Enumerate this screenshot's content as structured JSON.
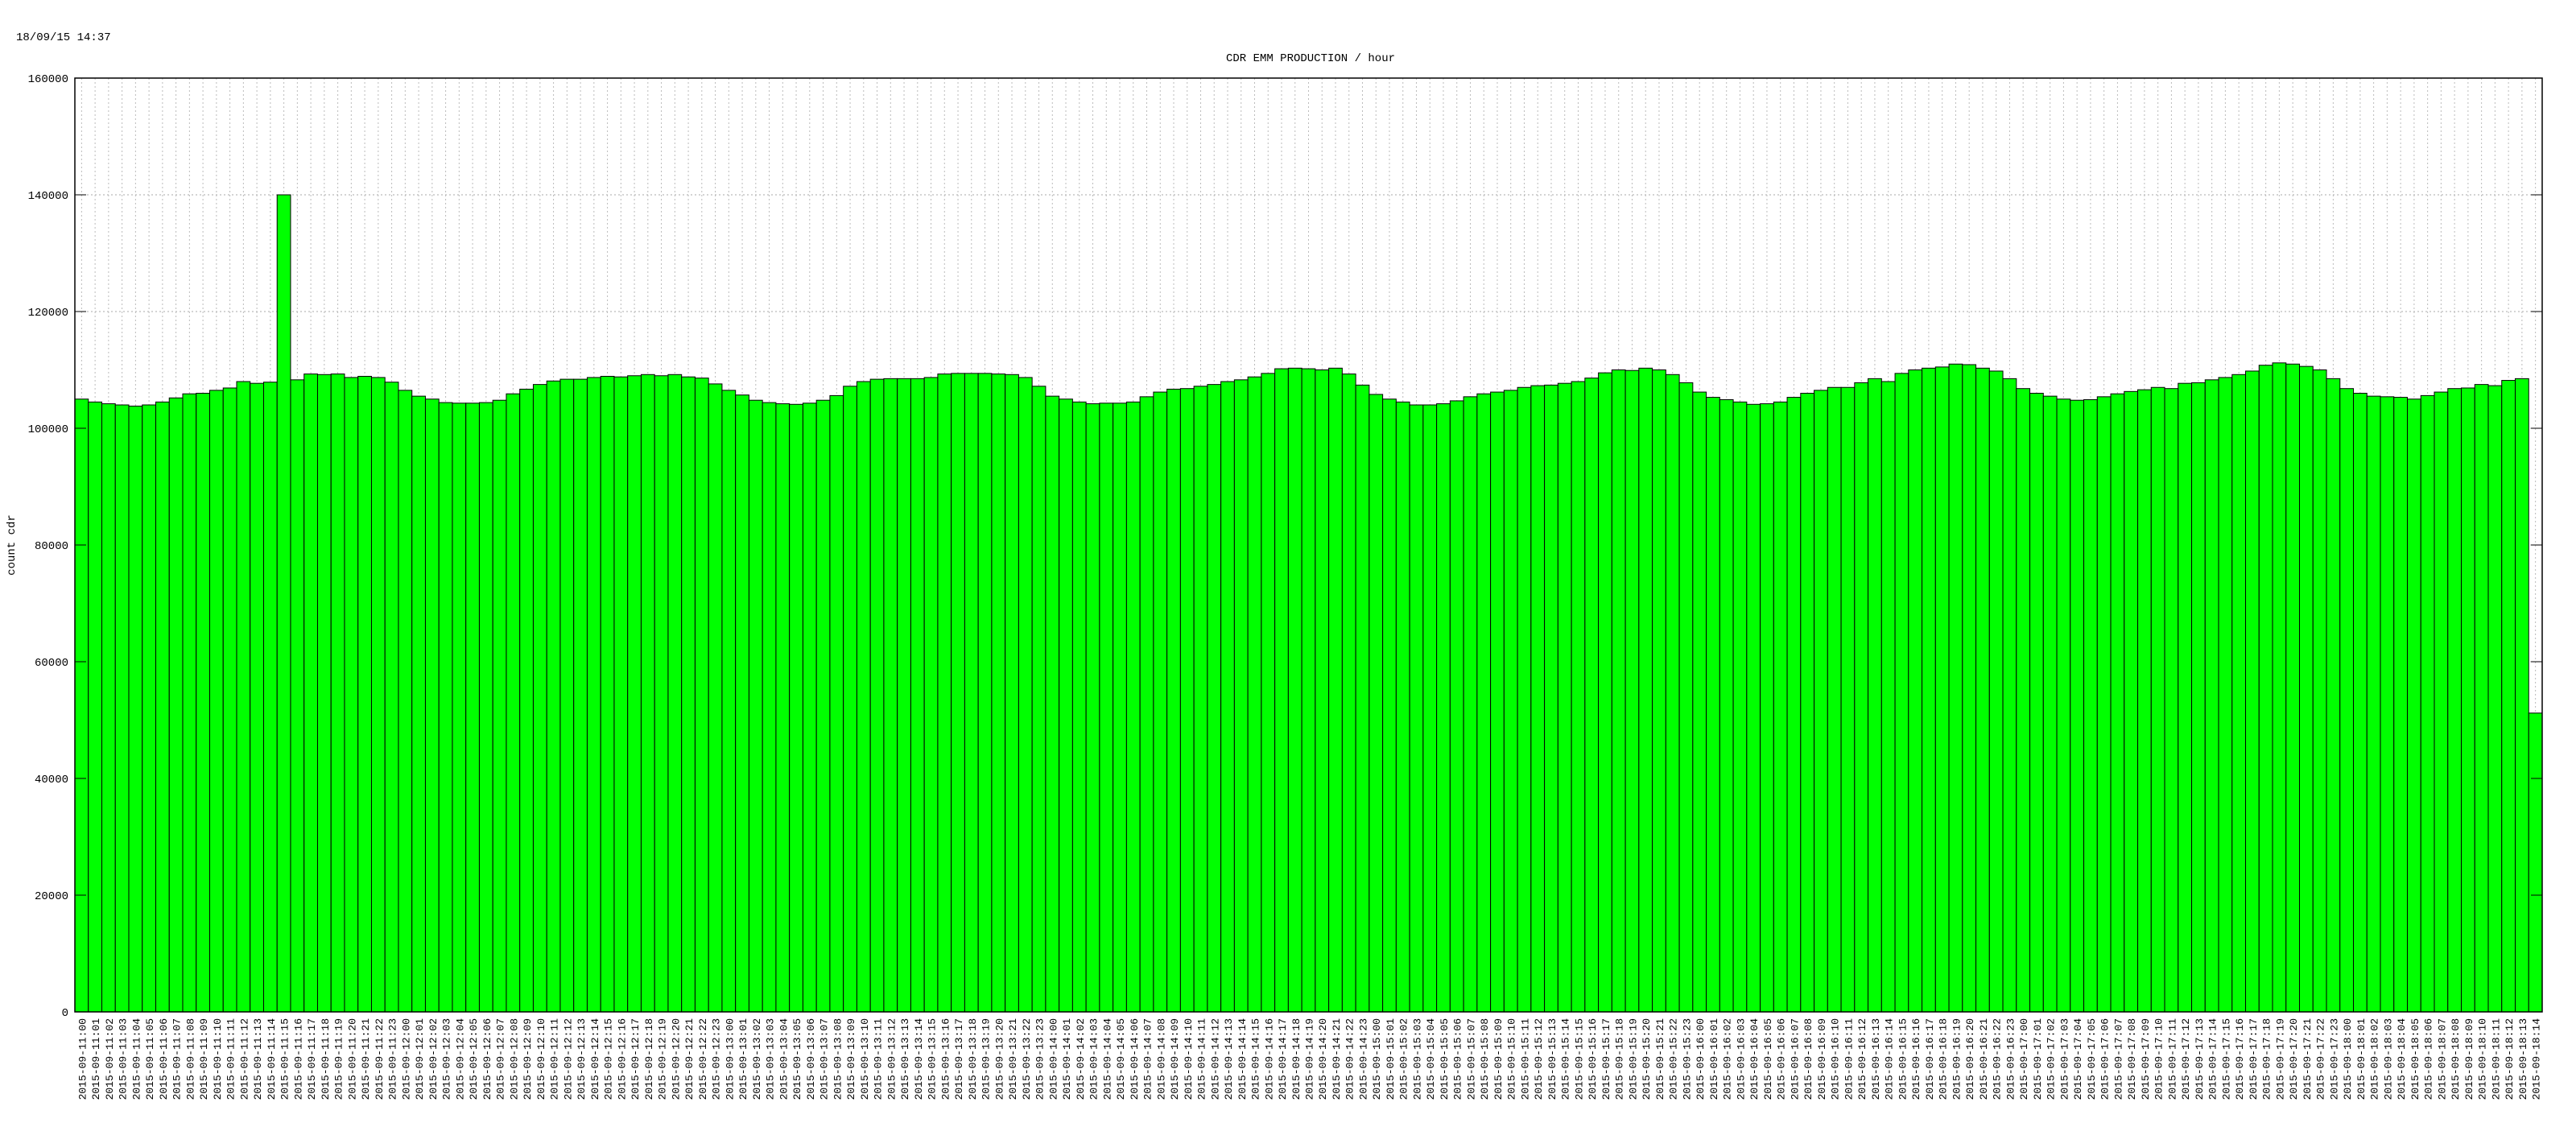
{
  "timestamp": "18/09/15 14:37",
  "chart_data": {
    "type": "bar",
    "title": "CDR EMM PRODUCTION / hour",
    "y_label": "count cdr",
    "color": "#00ff00",
    "edge_color": "#000000",
    "grid": true,
    "ylim": [
      0,
      160000
    ],
    "yticks": [
      0,
      20000,
      40000,
      60000,
      80000,
      100000,
      120000,
      140000,
      160000
    ],
    "categories": [
      "2015-09-11:00",
      "2015-09-11:01",
      "2015-09-11:02",
      "2015-09-11:03",
      "2015-09-11:04",
      "2015-09-11:05",
      "2015-09-11:06",
      "2015-09-11:07",
      "2015-09-11:08",
      "2015-09-11:09",
      "2015-09-11:10",
      "2015-09-11:11",
      "2015-09-11:12",
      "2015-09-11:13",
      "2015-09-11:14",
      "2015-09-11:15",
      "2015-09-11:16",
      "2015-09-11:17",
      "2015-09-11:18",
      "2015-09-11:19",
      "2015-09-11:20",
      "2015-09-11:21",
      "2015-09-11:22",
      "2015-09-11:23",
      "2015-09-12:00",
      "2015-09-12:01",
      "2015-09-12:02",
      "2015-09-12:03",
      "2015-09-12:04",
      "2015-09-12:05",
      "2015-09-12:06",
      "2015-09-12:07",
      "2015-09-12:08",
      "2015-09-12:09",
      "2015-09-12:10",
      "2015-09-12:11",
      "2015-09-12:12",
      "2015-09-12:13",
      "2015-09-12:14",
      "2015-09-12:15",
      "2015-09-12:16",
      "2015-09-12:17",
      "2015-09-12:18",
      "2015-09-12:19",
      "2015-09-12:20",
      "2015-09-12:21",
      "2015-09-12:22",
      "2015-09-12:23",
      "2015-09-13:00",
      "2015-09-13:01",
      "2015-09-13:02",
      "2015-09-13:03",
      "2015-09-13:04",
      "2015-09-13:05",
      "2015-09-13:06",
      "2015-09-13:07",
      "2015-09-13:08",
      "2015-09-13:09",
      "2015-09-13:10",
      "2015-09-13:11",
      "2015-09-13:12",
      "2015-09-13:13",
      "2015-09-13:14",
      "2015-09-13:15",
      "2015-09-13:16",
      "2015-09-13:17",
      "2015-09-13:18",
      "2015-09-13:19",
      "2015-09-13:20",
      "2015-09-13:21",
      "2015-09-13:22",
      "2015-09-13:23",
      "2015-09-14:00",
      "2015-09-14:01",
      "2015-09-14:02",
      "2015-09-14:03",
      "2015-09-14:04",
      "2015-09-14:05",
      "2015-09-14:06",
      "2015-09-14:07",
      "2015-09-14:08",
      "2015-09-14:09",
      "2015-09-14:10",
      "2015-09-14:11",
      "2015-09-14:12",
      "2015-09-14:13",
      "2015-09-14:14",
      "2015-09-14:15",
      "2015-09-14:16",
      "2015-09-14:17",
      "2015-09-14:18",
      "2015-09-14:19",
      "2015-09-14:20",
      "2015-09-14:21",
      "2015-09-14:22",
      "2015-09-14:23",
      "2015-09-15:00",
      "2015-09-15:01",
      "2015-09-15:02",
      "2015-09-15:03",
      "2015-09-15:04",
      "2015-09-15:05",
      "2015-09-15:06",
      "2015-09-15:07",
      "2015-09-15:08",
      "2015-09-15:09",
      "2015-09-15:10",
      "2015-09-15:11",
      "2015-09-15:12",
      "2015-09-15:13",
      "2015-09-15:14",
      "2015-09-15:15",
      "2015-09-15:16",
      "2015-09-15:17",
      "2015-09-15:18",
      "2015-09-15:19",
      "2015-09-15:20",
      "2015-09-15:21",
      "2015-09-15:22",
      "2015-09-15:23",
      "2015-09-16:00",
      "2015-09-16:01",
      "2015-09-16:02",
      "2015-09-16:03",
      "2015-09-16:04",
      "2015-09-16:05",
      "2015-09-16:06",
      "2015-09-16:07",
      "2015-09-16:08",
      "2015-09-16:09",
      "2015-09-16:10",
      "2015-09-16:11",
      "2015-09-16:12",
      "2015-09-16:13",
      "2015-09-16:14",
      "2015-09-16:15",
      "2015-09-16:16",
      "2015-09-16:17",
      "2015-09-16:18",
      "2015-09-16:19",
      "2015-09-16:20",
      "2015-09-16:21",
      "2015-09-16:22",
      "2015-09-16:23",
      "2015-09-17:00",
      "2015-09-17:01",
      "2015-09-17:02",
      "2015-09-17:03",
      "2015-09-17:04",
      "2015-09-17:05",
      "2015-09-17:06",
      "2015-09-17:07",
      "2015-09-17:08",
      "2015-09-17:09",
      "2015-09-17:10",
      "2015-09-17:11",
      "2015-09-17:12",
      "2015-09-17:13",
      "2015-09-17:14",
      "2015-09-17:15",
      "2015-09-17:16",
      "2015-09-17:17",
      "2015-09-17:18",
      "2015-09-17:19",
      "2015-09-17:20",
      "2015-09-17:21",
      "2015-09-17:22",
      "2015-09-17:23",
      "2015-09-18:00",
      "2015-09-18:01",
      "2015-09-18:02",
      "2015-09-18:03",
      "2015-09-18:04",
      "2015-09-18:05",
      "2015-09-18:06",
      "2015-09-18:07",
      "2015-09-18:08",
      "2015-09-18:09",
      "2015-09-18:10",
      "2015-09-18:11",
      "2015-09-18:12",
      "2015-09-18:13",
      "2015-09-18:14"
    ],
    "values": [
      105000,
      104500,
      104200,
      104000,
      103800,
      104000,
      104500,
      105200,
      105900,
      106000,
      106500,
      106900,
      108000,
      107700,
      107900,
      140000,
      108300,
      109300,
      109200,
      109300,
      108700,
      108900,
      108700,
      107900,
      106500,
      105500,
      105000,
      104400,
      104300,
      104300,
      104400,
      104800,
      105900,
      106700,
      107500,
      108100,
      108400,
      108400,
      108700,
      108900,
      108800,
      109000,
      109200,
      109000,
      109200,
      108800,
      108600,
      107600,
      106500,
      105700,
      104800,
      104400,
      104200,
      104100,
      104300,
      104800,
      105600,
      107200,
      108000,
      108400,
      108500,
      108500,
      108500,
      108700,
      109300,
      109400,
      109400,
      109400,
      109300,
      109200,
      108700,
      107200,
      105500,
      105000,
      104500,
      104200,
      104300,
      104300,
      104500,
      105400,
      106200,
      106700,
      106800,
      107200,
      107500,
      108000,
      108300,
      108800,
      109400,
      110200,
      110300,
      110200,
      110000,
      110300,
      109300,
      107400,
      105800,
      105000,
      104500,
      104000,
      104000,
      104200,
      104700,
      105400,
      105900,
      106200,
      106500,
      107000,
      107300,
      107400,
      107700,
      108000,
      108600,
      109500,
      110000,
      109900,
      110300,
      110000,
      109200,
      107800,
      106200,
      105300,
      104900,
      104500,
      104100,
      104200,
      104500,
      105300,
      106000,
      106500,
      107000,
      107000,
      107800,
      108500,
      108000,
      109400,
      110000,
      110300,
      110500,
      111000,
      110900,
      110300,
      109800,
      108500,
      106800,
      106000,
      105500,
      105000,
      104800,
      104900,
      105400,
      105900,
      106300,
      106600,
      107000,
      106800,
      107700,
      107800,
      108300,
      108700,
      109200,
      109800,
      110800,
      111200,
      111000,
      110600,
      110000,
      108500,
      106800,
      106000,
      105500,
      105400,
      105300,
      105000,
      105600,
      106200,
      106800,
      106900,
      107500,
      107300,
      108200,
      108500,
      51200
    ]
  }
}
